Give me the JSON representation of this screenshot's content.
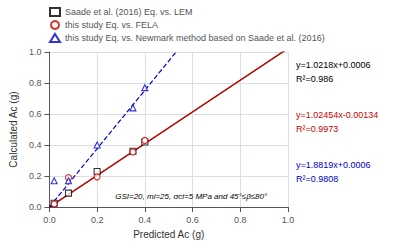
{
  "chart_data": {
    "type": "scatter",
    "xlabel": "Predicted Ac (g)",
    "ylabel": "Calculated Ac (g)",
    "xlim": [
      0.0,
      1.0
    ],
    "ylim": [
      0.0,
      1.0
    ],
    "xticks": [
      {
        "value": 0.0,
        "label": "0.0"
      },
      {
        "value": 0.2,
        "label": "0.2"
      },
      {
        "value": 0.4,
        "label": "0.4"
      },
      {
        "value": 0.6,
        "label": "0.6"
      },
      {
        "value": 0.8,
        "label": "0.8"
      },
      {
        "value": 1.0,
        "label": "1.0"
      }
    ],
    "yticks": [
      {
        "value": 0.0,
        "label": "0.0"
      },
      {
        "value": 0.2,
        "label": "0.2"
      },
      {
        "value": 0.4,
        "label": "0.4"
      },
      {
        "value": 0.6,
        "label": "0.6"
      },
      {
        "value": 0.8,
        "label": "0.8"
      },
      {
        "value": 1.0,
        "label": "1.0"
      }
    ],
    "grid": true,
    "legend": "top",
    "annotation": "GSI=20, mi=25, σci=5 MPa and 45°≤β≤80°",
    "series": [
      {
        "name": "Saade et al. (2016) Eq. vs. LEM",
        "color": "#000000",
        "marker": "square",
        "x": [
          0.02,
          0.08,
          0.2,
          0.35,
          0.4
        ],
        "values": [
          0.025,
          0.09,
          0.23,
          0.36,
          0.42
        ],
        "fit": {
          "slope": 1.0218,
          "intercept": 0.0006,
          "color": "#6b2d0f",
          "line_style": "solid"
        }
      },
      {
        "name": "this study Eq. vs. FELA",
        "color": "#cc0000",
        "marker": "circle",
        "x": [
          0.02,
          0.08,
          0.2,
          0.35,
          0.4
        ],
        "values": [
          0.02,
          0.19,
          0.195,
          0.355,
          0.43
        ],
        "fit": {
          "slope": 1.02454,
          "intercept": -0.00134,
          "color": "#cc0000",
          "line_style": "solid"
        }
      },
      {
        "name": "this study Eq. vs. Newmark method based on Saade et al. (2016)",
        "color": "#0000cc",
        "marker": "triangle",
        "x": [
          0.02,
          0.08,
          0.2,
          0.35,
          0.4
        ],
        "values": [
          0.17,
          0.17,
          0.4,
          0.64,
          0.77
        ],
        "fit": {
          "slope": 1.8819,
          "intercept": 0.0006,
          "color": "#0000cc",
          "line_style": "dashed"
        }
      }
    ],
    "equations": [
      {
        "lines": [
          "y=1.0218x+0.0006",
          "R²=0.986"
        ],
        "color": "#000000"
      },
      {
        "lines": [
          "y=1.02454x-0.00134",
          "R²=0.9973"
        ],
        "color": "#cc0000"
      },
      {
        "lines": [
          "y=1.8819x+0.0006",
          "R²=0.9808"
        ],
        "color": "#0000cc"
      }
    ]
  }
}
